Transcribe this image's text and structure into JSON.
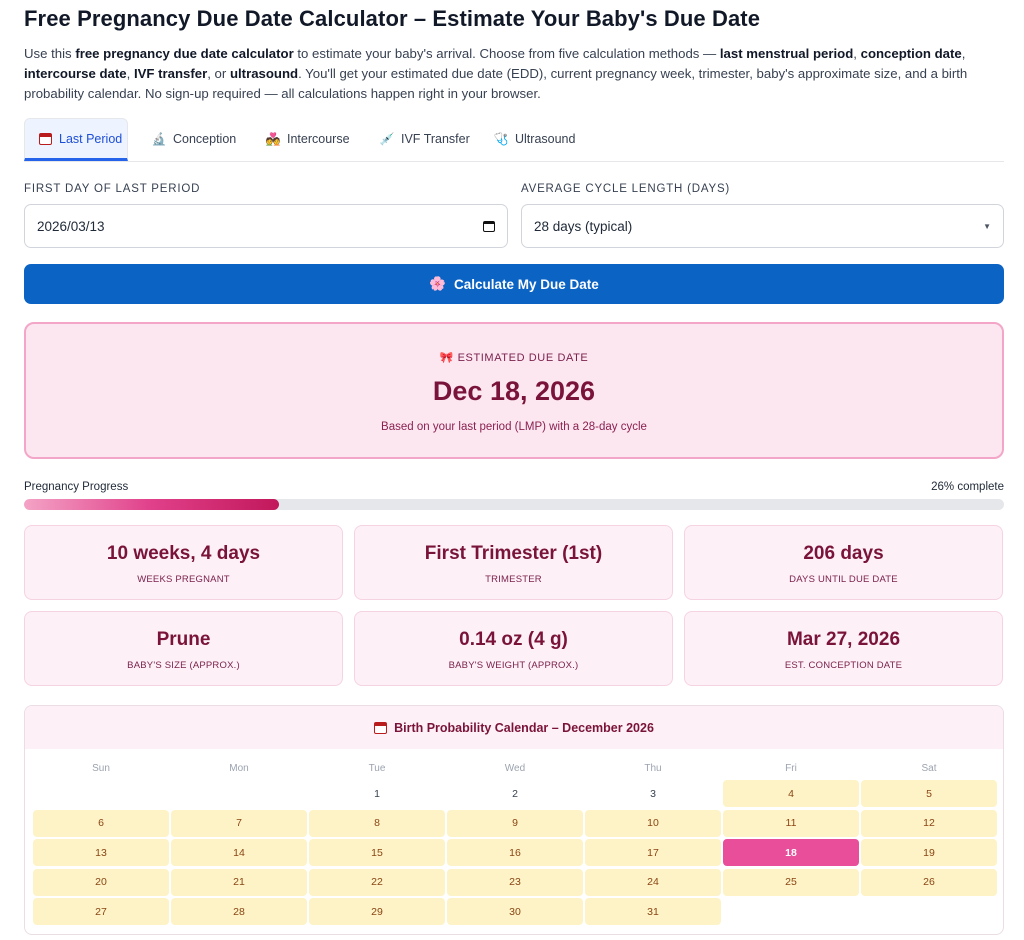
{
  "page": {
    "title": "Free Pregnancy Due Date Calculator – Estimate Your Baby's Due Date",
    "intro": [
      {
        "t": "Use this ",
        "b": false
      },
      {
        "t": "free pregnancy due date calculator",
        "b": true
      },
      {
        "t": " to estimate your baby's arrival. Choose from five calculation methods — ",
        "b": false
      },
      {
        "t": "last menstrual period",
        "b": true
      },
      {
        "t": ", ",
        "b": false
      },
      {
        "t": "conception date",
        "b": true
      },
      {
        "t": ", ",
        "b": false
      },
      {
        "t": "intercourse date",
        "b": true
      },
      {
        "t": ", ",
        "b": false
      },
      {
        "t": "IVF transfer",
        "b": true
      },
      {
        "t": ", or ",
        "b": false
      },
      {
        "t": "ultrasound",
        "b": true
      },
      {
        "t": ". You'll get your estimated due date (EDD), current pregnancy week, trimester, baby's approximate size, and a birth probability calendar. No sign-up required — all calculations happen right in your browser.",
        "b": false
      }
    ]
  },
  "tabs": [
    {
      "label": "Last Period",
      "icon": "calendar-icon",
      "glyph": "",
      "active": true,
      "name": "tab-last-period"
    },
    {
      "label": "Conception",
      "icon": "microscope-icon",
      "glyph": "🔬",
      "active": false,
      "name": "tab-conception"
    },
    {
      "label": "Intercourse",
      "icon": "couple-icon",
      "glyph": "💑",
      "active": false,
      "name": "tab-intercourse"
    },
    {
      "label": "IVF Transfer",
      "icon": "syringe-icon",
      "glyph": "💉",
      "active": false,
      "name": "tab-ivf-transfer"
    },
    {
      "label": "Ultrasound",
      "icon": "stethoscope-icon",
      "glyph": "🩺",
      "active": false,
      "name": "tab-ultrasound"
    }
  ],
  "form": {
    "period_label": "First day of last period",
    "period_value": "2026/03/13",
    "cycle_label": "Average cycle length (days)",
    "cycle_value": "28 days (typical)",
    "calc_button_label": "Calculate My Due Date",
    "calc_button_icon": "flower-icon",
    "calc_button_glyph": "🌸"
  },
  "result": {
    "label": "Estimated Due Date",
    "label_icon": "ribbon-icon",
    "label_glyph": "🎀",
    "due_date": "Dec 18, 2026",
    "subtitle": "Based on your last period (LMP) with a 28-day cycle"
  },
  "progress": {
    "label": "Pregnancy Progress",
    "pct_text": "26% complete",
    "value": 0.26
  },
  "stats": [
    {
      "value": "10 weeks, 4 days",
      "label": "Weeks Pregnant",
      "name": "stat-weeks-pregnant"
    },
    {
      "value": "First Trimester (1st)",
      "label": "Trimester",
      "name": "stat-trimester"
    },
    {
      "value": "206 days",
      "label": "Days Until Due Date",
      "name": "stat-days-until"
    },
    {
      "value": "Prune",
      "label": "Baby's Size (Approx.)",
      "name": "stat-baby-size"
    },
    {
      "value": "0.14 oz (4 g)",
      "label": "Baby's Weight (Approx.)",
      "name": "stat-baby-weight"
    },
    {
      "value": "Mar 27, 2026",
      "label": "Est. Conception Date",
      "name": "stat-conception-date"
    }
  ],
  "calendar": {
    "title": "Birth Probability Calendar – December 2026",
    "title_icon": "calendar-icon",
    "weekdays": [
      "Sun",
      "Mon",
      "Tue",
      "Wed",
      "Thu",
      "Fri",
      "Sat"
    ],
    "first_weekday_index": 2,
    "days_in_month": 31,
    "highlight_from": 4,
    "highlight_to": 31,
    "due_day": 18
  },
  "colors": {
    "accent_blue": "#0b63c4",
    "tab_active": "#2563eb",
    "pink_text": "#7a1339",
    "due_day": "#e84e9a",
    "probability_day": "#fdf3c7"
  }
}
